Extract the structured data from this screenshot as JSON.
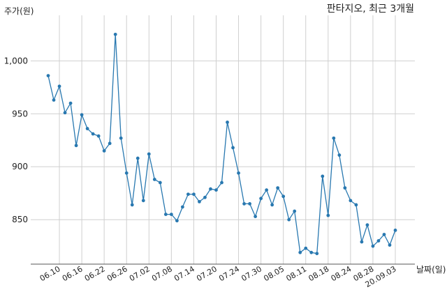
{
  "chart_data": {
    "type": "line",
    "title": "판타지오, 최근 3개월",
    "xlabel": "날짜(일)",
    "ylabel": "주가(원)",
    "x": [
      "06.08",
      "06.09",
      "06.10",
      "06.11",
      "06.12",
      "06.15",
      "06.16",
      "06.17",
      "06.18",
      "06.19",
      "06.22",
      "06.23",
      "06.24",
      "06.25",
      "06.26",
      "06.29",
      "06.30",
      "07.01",
      "07.02",
      "07.03",
      "07.06",
      "07.07",
      "07.08",
      "07.09",
      "07.10",
      "07.13",
      "07.14",
      "07.15",
      "07.16",
      "07.17",
      "07.20",
      "07.21",
      "07.22",
      "07.23",
      "07.24",
      "07.27",
      "07.28",
      "07.29",
      "07.30",
      "07.31",
      "08.03",
      "08.04",
      "08.05",
      "08.06",
      "08.07",
      "08.10",
      "08.11",
      "08.12",
      "08.13",
      "08.14",
      "08.18",
      "08.19",
      "08.20",
      "08.21",
      "08.24",
      "08.25",
      "08.26",
      "08.27",
      "08.28",
      "08.31",
      "20.09.01",
      "20.09.02",
      "20.09.03"
    ],
    "values": [
      986,
      963,
      976,
      951,
      960,
      920,
      949,
      936,
      931,
      929,
      915,
      922,
      1025,
      927,
      894,
      864,
      908,
      868,
      912,
      888,
      885,
      855,
      855,
      849,
      862,
      874,
      874,
      867,
      871,
      879,
      878,
      885,
      942,
      918,
      894,
      865,
      865,
      853,
      870,
      878,
      864,
      880,
      872,
      850,
      858,
      819,
      823,
      819,
      818,
      891,
      854,
      927,
      911,
      880,
      868,
      864,
      829,
      845,
      825,
      830,
      836,
      826,
      840
    ],
    "xticks": [
      "06.10",
      "06.16",
      "06.22",
      "06.26",
      "07.02",
      "07.08",
      "07.14",
      "07.20",
      "07.24",
      "07.30",
      "08.05",
      "08.11",
      "08.18",
      "08.24",
      "08.28",
      "20.09.03"
    ],
    "yticks": [
      850,
      900,
      950,
      1000
    ],
    "ytick_labels": [
      "850",
      "900",
      "950",
      "1,000"
    ],
    "ylim": [
      808,
      1043
    ],
    "grid": true,
    "legend": "none",
    "line_color": "#2878b0"
  }
}
